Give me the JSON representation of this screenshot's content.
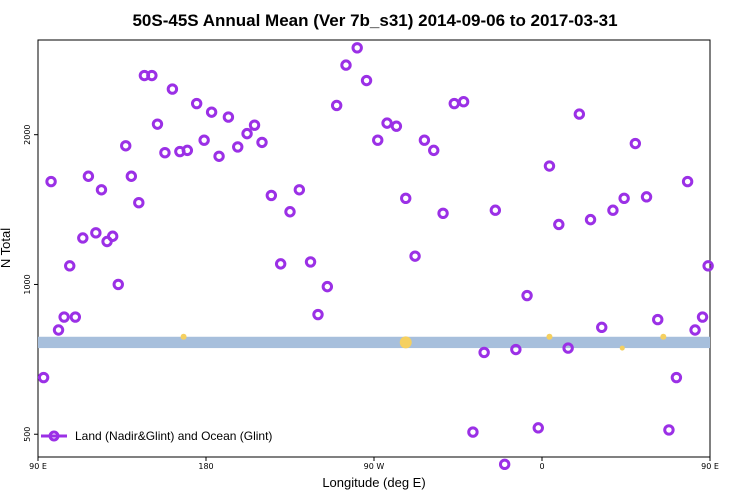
{
  "chart_data": {
    "type": "scatter",
    "title": "50S-45S Annual Mean (Ver 7b_s31)   2014-09-06 to 2017-03-31",
    "xlabel": "Longitude (deg E)",
    "ylabel": "N Total",
    "xlim": [
      90,
      450
    ],
    "ylim": [
      450,
      3100
    ],
    "y_scale": "log",
    "x_ticks": [
      {
        "value": 90,
        "label": "90 E"
      },
      {
        "value": 180,
        "label": "180"
      },
      {
        "value": 270,
        "label": "90 W"
      },
      {
        "value": 360,
        "label": "0"
      },
      {
        "value": 450,
        "label": "90 E"
      }
    ],
    "y_ticks": [
      {
        "value": 500,
        "label": "500"
      },
      {
        "value": 1000,
        "label": "1000"
      },
      {
        "value": 2000,
        "label": "2000"
      }
    ],
    "legend": {
      "position": "bottom-left",
      "label": "Land (Nadir&Glint) and Ocean (Glint)"
    },
    "colors": {
      "series": "#9b30e6",
      "band": "#a7bfdc",
      "land": "#f5d060"
    },
    "band_range": [
      745,
      785
    ],
    "land_markers": [
      {
        "x": 168,
        "y": 785,
        "size": 4
      },
      {
        "x": 287,
        "y": 765,
        "size": 10
      },
      {
        "x": 364,
        "y": 785,
        "size": 4
      },
      {
        "x": 403,
        "y": 745,
        "size": 3
      },
      {
        "x": 425,
        "y": 785,
        "size": 4
      }
    ],
    "series": [
      {
        "name": "Land (Nadir&Glint) and Ocean (Glint)",
        "points": [
          [
            93,
            650
          ],
          [
            97,
            1610
          ],
          [
            101,
            810
          ],
          [
            104,
            860
          ],
          [
            107,
            1090
          ],
          [
            110,
            860
          ],
          [
            114,
            1240
          ],
          [
            117,
            1650
          ],
          [
            121,
            1270
          ],
          [
            124,
            1550
          ],
          [
            127,
            1220
          ],
          [
            130,
            1250
          ],
          [
            133,
            1000
          ],
          [
            137,
            1900
          ],
          [
            140,
            1650
          ],
          [
            144,
            1460
          ],
          [
            147,
            2630
          ],
          [
            151,
            2630
          ],
          [
            154,
            2100
          ],
          [
            158,
            1840
          ],
          [
            162,
            2470
          ],
          [
            166,
            1850
          ],
          [
            170,
            1860
          ],
          [
            175,
            2310
          ],
          [
            179,
            1950
          ],
          [
            183,
            2220
          ],
          [
            187,
            1810
          ],
          [
            192,
            2170
          ],
          [
            197,
            1890
          ],
          [
            202,
            2010
          ],
          [
            206,
            2090
          ],
          [
            210,
            1930
          ],
          [
            215,
            1510
          ],
          [
            220,
            1100
          ],
          [
            225,
            1400
          ],
          [
            230,
            1550
          ],
          [
            236,
            1110
          ],
          [
            240,
            870
          ],
          [
            245,
            990
          ],
          [
            250,
            2290
          ],
          [
            255,
            2760
          ],
          [
            261,
            2990
          ],
          [
            266,
            2570
          ],
          [
            272,
            1950
          ],
          [
            277,
            2110
          ],
          [
            282,
            2080
          ],
          [
            287,
            1490
          ],
          [
            292,
            1140
          ],
          [
            297,
            1950
          ],
          [
            302,
            1860
          ],
          [
            307,
            1390
          ],
          [
            313,
            2310
          ],
          [
            318,
            2330
          ],
          [
            323,
            505
          ],
          [
            329,
            730
          ],
          [
            335,
            1410
          ],
          [
            340,
            435
          ],
          [
            346,
            740
          ],
          [
            352,
            950
          ],
          [
            358,
            515
          ],
          [
            364,
            1730
          ],
          [
            369,
            1320
          ],
          [
            374,
            745
          ],
          [
            380,
            2200
          ],
          [
            386,
            1350
          ],
          [
            392,
            820
          ],
          [
            398,
            1410
          ],
          [
            404,
            1490
          ],
          [
            410,
            1920
          ],
          [
            416,
            1500
          ],
          [
            422,
            850
          ],
          [
            428,
            510
          ],
          [
            432,
            650
          ],
          [
            438,
            1610
          ],
          [
            442,
            810
          ],
          [
            446,
            860
          ],
          [
            449,
            1090
          ]
        ]
      }
    ]
  }
}
